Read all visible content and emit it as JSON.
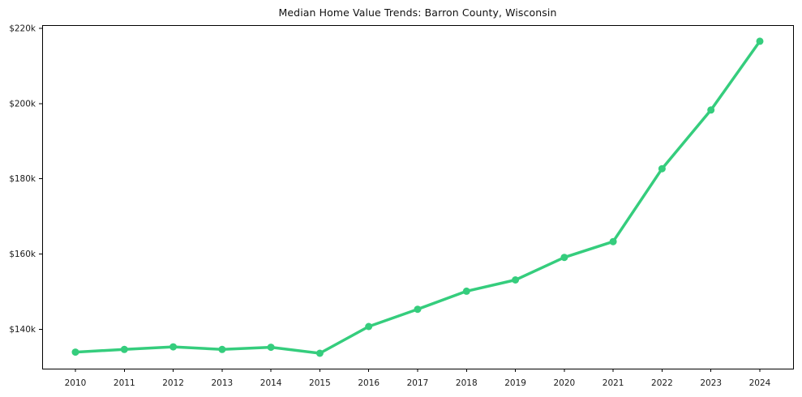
{
  "chart_data": {
    "type": "line",
    "title": "Median Home Value Trends: Barron County, Wisconsin",
    "xlabel": "",
    "ylabel": "",
    "x": [
      2010,
      2011,
      2012,
      2013,
      2014,
      2015,
      2016,
      2017,
      2018,
      2019,
      2020,
      2021,
      2022,
      2023,
      2024
    ],
    "x_tick_labels": [
      "2010",
      "2011",
      "2012",
      "2013",
      "2014",
      "2015",
      "2016",
      "2017",
      "2018",
      "2019",
      "2020",
      "2021",
      "2022",
      "2023",
      "2024"
    ],
    "series": [
      {
        "name": "Median Home Value",
        "values": [
          133900,
          134600,
          135300,
          134600,
          135200,
          133600,
          140700,
          145300,
          150100,
          153100,
          159100,
          163300,
          182700,
          198300,
          216600
        ]
      }
    ],
    "y_ticks": [
      140000,
      160000,
      180000,
      200000,
      220000
    ],
    "y_tick_labels": [
      "$140k",
      "$160k",
      "$180k",
      "$200k",
      "$220k"
    ],
    "ylim": [
      129500,
      220900
    ],
    "grid": false,
    "legend": "none",
    "line_color": "#35cd7d",
    "marker": "circle",
    "axis_color": "#000000",
    "tick_label_color": "#1a1a1a",
    "background_color": "#ffffff"
  }
}
